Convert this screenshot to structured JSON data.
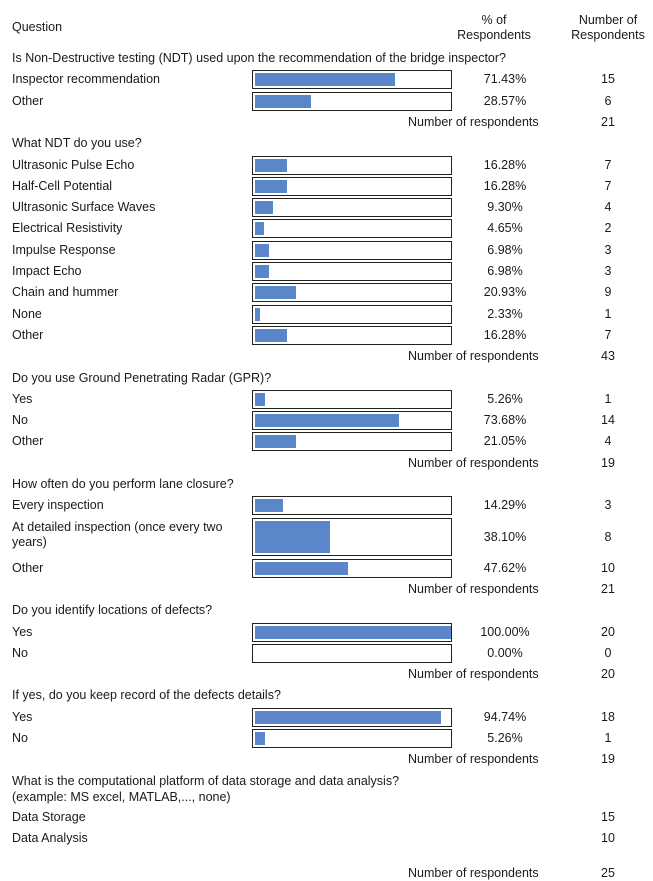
{
  "header": {
    "question": "Question",
    "percent": "% of\nRespondents",
    "number": "Number of\nRespondents"
  },
  "respondents_label": "Number of respondents",
  "colors": {
    "bar": "#5b86c9",
    "border": "#222222"
  },
  "chart_data": {
    "type": "bar",
    "orientation": "horizontal",
    "xlim": [
      0,
      100
    ],
    "sections": [
      {
        "question": "Is Non-Destructive testing (NDT) used upon the recommendation of the bridge inspector?",
        "options": [
          {
            "label": "Inspector recommendation",
            "pct": 71.43,
            "pct_text": "71.43%",
            "count": "15"
          },
          {
            "label": "Other",
            "pct": 28.57,
            "pct_text": "28.57%",
            "count": "6"
          }
        ],
        "total": "21"
      },
      {
        "question": "What NDT do you use?",
        "options": [
          {
            "label": "Ultrasonic Pulse Echo",
            "pct": 16.28,
            "pct_text": "16.28%",
            "count": "7"
          },
          {
            "label": "Half-Cell Potential",
            "pct": 16.28,
            "pct_text": "16.28%",
            "count": "7"
          },
          {
            "label": "Ultrasonic Surface Waves",
            "pct": 9.3,
            "pct_text": "9.30%",
            "count": "4"
          },
          {
            "label": "Electrical Resistivity",
            "pct": 4.65,
            "pct_text": "4.65%",
            "count": "2"
          },
          {
            "label": "Impulse Response",
            "pct": 6.98,
            "pct_text": "6.98%",
            "count": "3"
          },
          {
            "label": "Impact Echo",
            "pct": 6.98,
            "pct_text": "6.98%",
            "count": "3"
          },
          {
            "label": "Chain and hummer",
            "pct": 20.93,
            "pct_text": "20.93%",
            "count": "9"
          },
          {
            "label": "None",
            "pct": 2.33,
            "pct_text": "2.33%",
            "count": "1"
          },
          {
            "label": "Other",
            "pct": 16.28,
            "pct_text": "16.28%",
            "count": "7"
          }
        ],
        "total": "43"
      },
      {
        "question": "Do you use Ground Penetrating Radar (GPR)?",
        "options": [
          {
            "label": "Yes",
            "pct": 5.26,
            "pct_text": "5.26%",
            "count": "1"
          },
          {
            "label": "No",
            "pct": 73.68,
            "pct_text": "73.68%",
            "count": "14"
          },
          {
            "label": "Other",
            "pct": 21.05,
            "pct_text": "21.05%",
            "count": "4"
          }
        ],
        "total": "19"
      },
      {
        "question": "How often do you perform lane closure?",
        "options": [
          {
            "label": "Every inspection",
            "pct": 14.29,
            "pct_text": "14.29%",
            "count": "3"
          },
          {
            "label": "At detailed inspection (once every two years)",
            "pct": 38.1,
            "pct_text": "38.10%",
            "count": "8",
            "wrap": true
          },
          {
            "label": "Other",
            "pct": 47.62,
            "pct_text": "47.62%",
            "count": "10"
          }
        ],
        "total": "21"
      },
      {
        "question": "Do you identify locations of defects?",
        "options": [
          {
            "label": "Yes",
            "pct": 100.0,
            "pct_text": "100.00%",
            "count": "20"
          },
          {
            "label": "No",
            "pct": 0.0,
            "pct_text": "0.00%",
            "count": "0"
          }
        ],
        "total": "20"
      },
      {
        "question": "If yes, do you keep record of the defects details?",
        "options": [
          {
            "label": "Yes",
            "pct": 94.74,
            "pct_text": "94.74%",
            "count": "18"
          },
          {
            "label": "No",
            "pct": 5.26,
            "pct_text": "5.26%",
            "count": "1"
          }
        ],
        "total": "19"
      }
    ]
  },
  "platform": {
    "question": "What is the computational platform of data storage and data analysis?",
    "example": " (example: MS excel, MATLAB,..., none)",
    "items": [
      {
        "label": "Data Storage",
        "count": "15"
      },
      {
        "label": "Data Analysis",
        "count": "10"
      }
    ],
    "total": "25"
  }
}
